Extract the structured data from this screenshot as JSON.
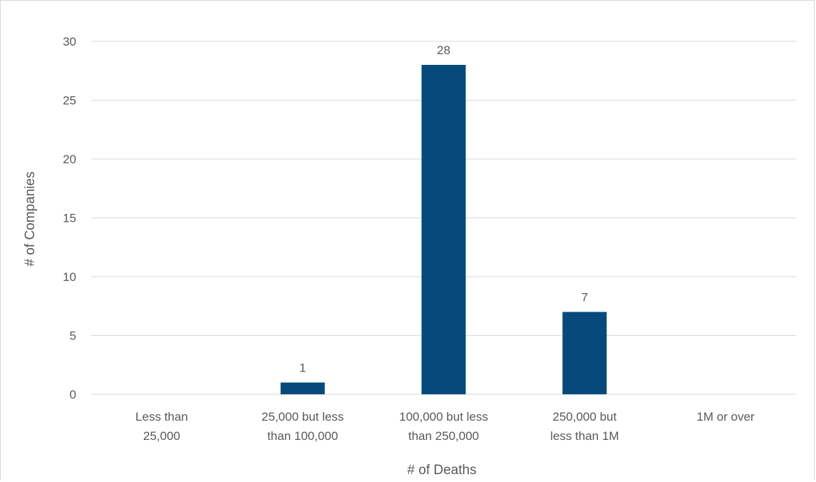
{
  "chart_data": {
    "type": "bar",
    "title": "",
    "xlabel": "# of Deaths",
    "ylabel": "# of Companies",
    "categories": [
      [
        "Less than",
        "25,000"
      ],
      [
        "25,000 but less",
        "than 100,000"
      ],
      [
        "100,000 but less",
        "than 250,000"
      ],
      [
        "250,000 but",
        "less than 1M"
      ],
      [
        "1M or over"
      ]
    ],
    "values": [
      0,
      1,
      28,
      7,
      0
    ],
    "data_labels": [
      "",
      "1",
      "28",
      "7",
      ""
    ],
    "ylim": [
      0,
      30
    ],
    "yticks": [
      0,
      5,
      10,
      15,
      20,
      25,
      30
    ],
    "grid": true,
    "legend": "none",
    "colors": {
      "bar": "#054a7a",
      "grid": "#d9d9d9",
      "text": "#595959"
    }
  }
}
